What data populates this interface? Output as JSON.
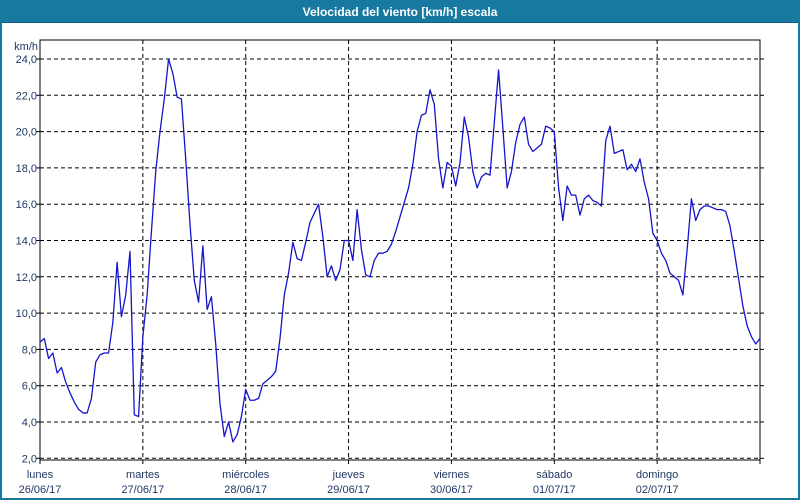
{
  "window": {
    "title": "Velocidad del viento [km/h] escala"
  },
  "colors": {
    "titlebar_bg": "#1778a0",
    "titlebar_text": "#ffffff",
    "window_border": "#1778a0",
    "plot_background": "#ffffff",
    "plot_border": "#000000",
    "grid": "#000000",
    "axis_text": "#203864",
    "line": "#1414cc"
  },
  "chart_data": {
    "type": "line",
    "title": "Velocidad del viento [km/h] escala",
    "ylabel": "km/h",
    "xlabel": "",
    "grid": "dashed",
    "legend_position": "none",
    "ylim": [
      2,
      24
    ],
    "y_axis": {
      "unit_label": "km/h",
      "min": 2,
      "max": 24,
      "tick_step": 2,
      "tick_labels": [
        "24,0",
        "22,0",
        "20,0",
        "18,0",
        "16,0",
        "14,0",
        "12,0",
        "10,0",
        "8,0",
        "6,0",
        "4,0",
        "2,0"
      ]
    },
    "x_axis": {
      "span": "7 days",
      "sampling": "hourly",
      "days": [
        {
          "name": "lunes",
          "date": "26/06/17"
        },
        {
          "name": "martes",
          "date": "27/06/17"
        },
        {
          "name": "miércoles",
          "date": "28/06/17"
        },
        {
          "name": "jueves",
          "date": "29/06/17"
        },
        {
          "name": "viernes",
          "date": "30/06/17"
        },
        {
          "name": "sábado",
          "date": "01/07/17"
        },
        {
          "name": "domingo",
          "date": "02/07/17"
        }
      ]
    },
    "series": [
      {
        "name": "Velocidad del viento",
        "unit": "km/h",
        "values": [
          8.4,
          8.6,
          7.5,
          7.8,
          6.7,
          7.0,
          6.2,
          5.6,
          5.1,
          4.7,
          4.5,
          4.5,
          5.3,
          7.3,
          7.7,
          7.8,
          7.8,
          9.5,
          12.8,
          9.8,
          11.0,
          13.4,
          4.4,
          4.3,
          8.7,
          11.0,
          14.5,
          17.8,
          20.0,
          21.8,
          24.0,
          23.2,
          21.9,
          21.8,
          18.5,
          14.9,
          11.8,
          10.6,
          13.7,
          10.2,
          10.9,
          8.3,
          5.0,
          3.2,
          4.0,
          2.9,
          3.3,
          4.3,
          5.8,
          5.2,
          5.2,
          5.3,
          6.1,
          6.3,
          6.5,
          6.8,
          8.6,
          11.0,
          12.2,
          13.9,
          13.0,
          12.9,
          13.9,
          15.0,
          15.5,
          16.0,
          14.2,
          12.0,
          12.6,
          11.8,
          12.4,
          14.0,
          14.0,
          12.9,
          15.7,
          13.5,
          12.1,
          12.0,
          12.9,
          13.3,
          13.3,
          13.4,
          13.8,
          14.5,
          15.3,
          16.1,
          16.9,
          18.2,
          20.0,
          20.9,
          21.0,
          22.3,
          21.5,
          18.5,
          16.9,
          18.3,
          18.1,
          17.0,
          18.3,
          20.8,
          19.7,
          17.8,
          16.9,
          17.5,
          17.7,
          17.6,
          20.5,
          23.4,
          20.2,
          16.9,
          17.8,
          19.4,
          20.4,
          20.8,
          19.3,
          18.9,
          19.1,
          19.3,
          20.3,
          20.2,
          20.0,
          16.9,
          15.1,
          17.0,
          16.5,
          16.5,
          15.4,
          16.3,
          16.5,
          16.2,
          16.1,
          15.9,
          19.5,
          20.3,
          18.8,
          18.9,
          19.0,
          17.9,
          18.2,
          17.8,
          18.5,
          17.2,
          16.3,
          14.4,
          14.0,
          13.3,
          12.9,
          12.2,
          12.0,
          11.8,
          11.0,
          13.5,
          16.3,
          15.1,
          15.7,
          15.9,
          15.9,
          15.8,
          15.7,
          15.7,
          15.6,
          14.8,
          13.4,
          11.9,
          10.4,
          9.3,
          8.7,
          8.3,
          8.6
        ]
      }
    ]
  }
}
